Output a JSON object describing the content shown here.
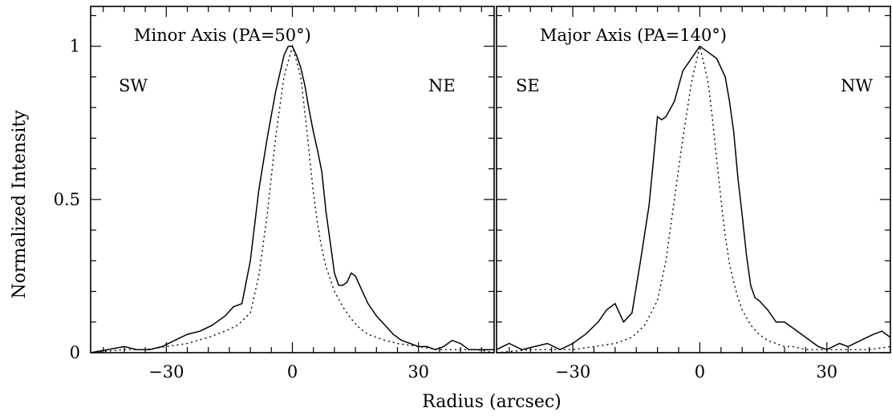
{
  "figure": {
    "xlabel": "Radius (arcsec)",
    "ylabel": "Normalized Intensity"
  },
  "chart_data": [
    {
      "type": "line",
      "title": "Minor Axis (PA=50°)",
      "annotations": [
        "SW",
        "NE"
      ],
      "xlabel": "Radius (arcsec)",
      "ylabel": "Normalized Intensity",
      "xlim": [
        -48,
        48
      ],
      "ylim": [
        0,
        1.13
      ],
      "xticks": [
        -30,
        0,
        30
      ],
      "xtick_labels": [
        "−30",
        "0",
        "30"
      ],
      "yticks": [
        0,
        0.5,
        1
      ],
      "ytick_labels": [
        "0",
        "0.5",
        "1"
      ],
      "series": [
        {
          "style": "solid",
          "x": [
            -48,
            -44,
            -40,
            -37,
            -34,
            -31,
            -28,
            -25,
            -22,
            -19,
            -16,
            -14,
            -12,
            -10,
            -8,
            -6,
            -4,
            -2,
            -1,
            0,
            1,
            2,
            3,
            4,
            5,
            6,
            7,
            8,
            9,
            10,
            11,
            12,
            13,
            14,
            15,
            16,
            17,
            18,
            19,
            20,
            22,
            24,
            26,
            28,
            30,
            32,
            34,
            36,
            38,
            40,
            42,
            44,
            46,
            48
          ],
          "y": [
            0.0,
            0.01,
            0.02,
            0.01,
            0.01,
            0.02,
            0.04,
            0.06,
            0.07,
            0.09,
            0.12,
            0.15,
            0.16,
            0.3,
            0.53,
            0.7,
            0.85,
            0.97,
            1.0,
            1.0,
            0.97,
            0.93,
            0.87,
            0.79,
            0.72,
            0.66,
            0.59,
            0.46,
            0.36,
            0.26,
            0.22,
            0.22,
            0.23,
            0.26,
            0.25,
            0.22,
            0.19,
            0.16,
            0.14,
            0.12,
            0.09,
            0.06,
            0.04,
            0.03,
            0.02,
            0.02,
            0.01,
            0.02,
            0.04,
            0.03,
            0.01,
            0.01,
            0.01,
            0.01
          ]
        },
        {
          "style": "dotted",
          "x": [
            -48,
            -40,
            -35,
            -30,
            -25,
            -20,
            -16,
            -13,
            -10,
            -8,
            -6,
            -4,
            -2,
            0,
            2,
            3,
            4,
            5,
            6,
            7,
            8,
            9,
            10,
            12,
            14,
            16,
            18,
            20,
            22,
            25,
            30,
            35,
            40,
            44,
            48
          ],
          "y": [
            0.0,
            0.01,
            0.01,
            0.02,
            0.03,
            0.05,
            0.07,
            0.09,
            0.13,
            0.25,
            0.45,
            0.7,
            0.9,
            1.0,
            0.9,
            0.78,
            0.65,
            0.52,
            0.42,
            0.34,
            0.28,
            0.24,
            0.2,
            0.15,
            0.11,
            0.08,
            0.06,
            0.05,
            0.04,
            0.03,
            0.02,
            0.01,
            0.01,
            0.01,
            0.0
          ]
        }
      ]
    },
    {
      "type": "line",
      "title": "Major Axis (PA=140°)",
      "annotations": [
        "SE",
        "NW"
      ],
      "xlabel": "Radius (arcsec)",
      "ylabel": "Normalized Intensity",
      "xlim": [
        -48,
        45
      ],
      "ylim": [
        0,
        1.13
      ],
      "xticks": [
        -30,
        0,
        30
      ],
      "xtick_labels": [
        "−30",
        "0",
        "30"
      ],
      "yticks": [
        0,
        0.5,
        1
      ],
      "ytick_labels": [
        "0",
        "0.5",
        "1"
      ],
      "series": [
        {
          "style": "solid",
          "x": [
            -48,
            -45,
            -42,
            -39,
            -36,
            -33,
            -30,
            -27,
            -24,
            -22,
            -20,
            -18,
            -16,
            -14,
            -12,
            -11,
            -10,
            -9,
            -8,
            -6,
            -4,
            -2,
            0,
            2,
            4,
            6,
            7,
            8,
            9,
            10,
            11,
            12,
            13,
            14,
            16,
            18,
            20,
            22,
            25,
            28,
            30,
            33,
            35,
            38,
            41,
            43,
            45
          ],
          "y": [
            0.01,
            0.03,
            0.01,
            0.02,
            0.03,
            0.01,
            0.03,
            0.06,
            0.1,
            0.14,
            0.16,
            0.1,
            0.13,
            0.3,
            0.48,
            0.62,
            0.77,
            0.76,
            0.77,
            0.82,
            0.92,
            0.96,
            1.0,
            0.98,
            0.96,
            0.9,
            0.82,
            0.72,
            0.57,
            0.45,
            0.32,
            0.22,
            0.18,
            0.17,
            0.14,
            0.1,
            0.1,
            0.08,
            0.05,
            0.02,
            0.01,
            0.03,
            0.02,
            0.04,
            0.06,
            0.07,
            0.05
          ]
        },
        {
          "style": "dotted",
          "x": [
            -48,
            -40,
            -35,
            -30,
            -25,
            -20,
            -16,
            -13,
            -10,
            -8,
            -6,
            -4,
            -2,
            0,
            2,
            3,
            4,
            5,
            6,
            7,
            8,
            9,
            10,
            12,
            14,
            16,
            18,
            20,
            22,
            25,
            30,
            35,
            40,
            45
          ],
          "y": [
            0.0,
            0.01,
            0.01,
            0.01,
            0.02,
            0.03,
            0.05,
            0.09,
            0.17,
            0.3,
            0.5,
            0.7,
            0.88,
            1.0,
            0.88,
            0.76,
            0.63,
            0.5,
            0.38,
            0.29,
            0.23,
            0.18,
            0.14,
            0.09,
            0.06,
            0.04,
            0.03,
            0.02,
            0.02,
            0.01,
            0.01,
            0.01,
            0.01,
            0.02
          ]
        }
      ]
    }
  ]
}
